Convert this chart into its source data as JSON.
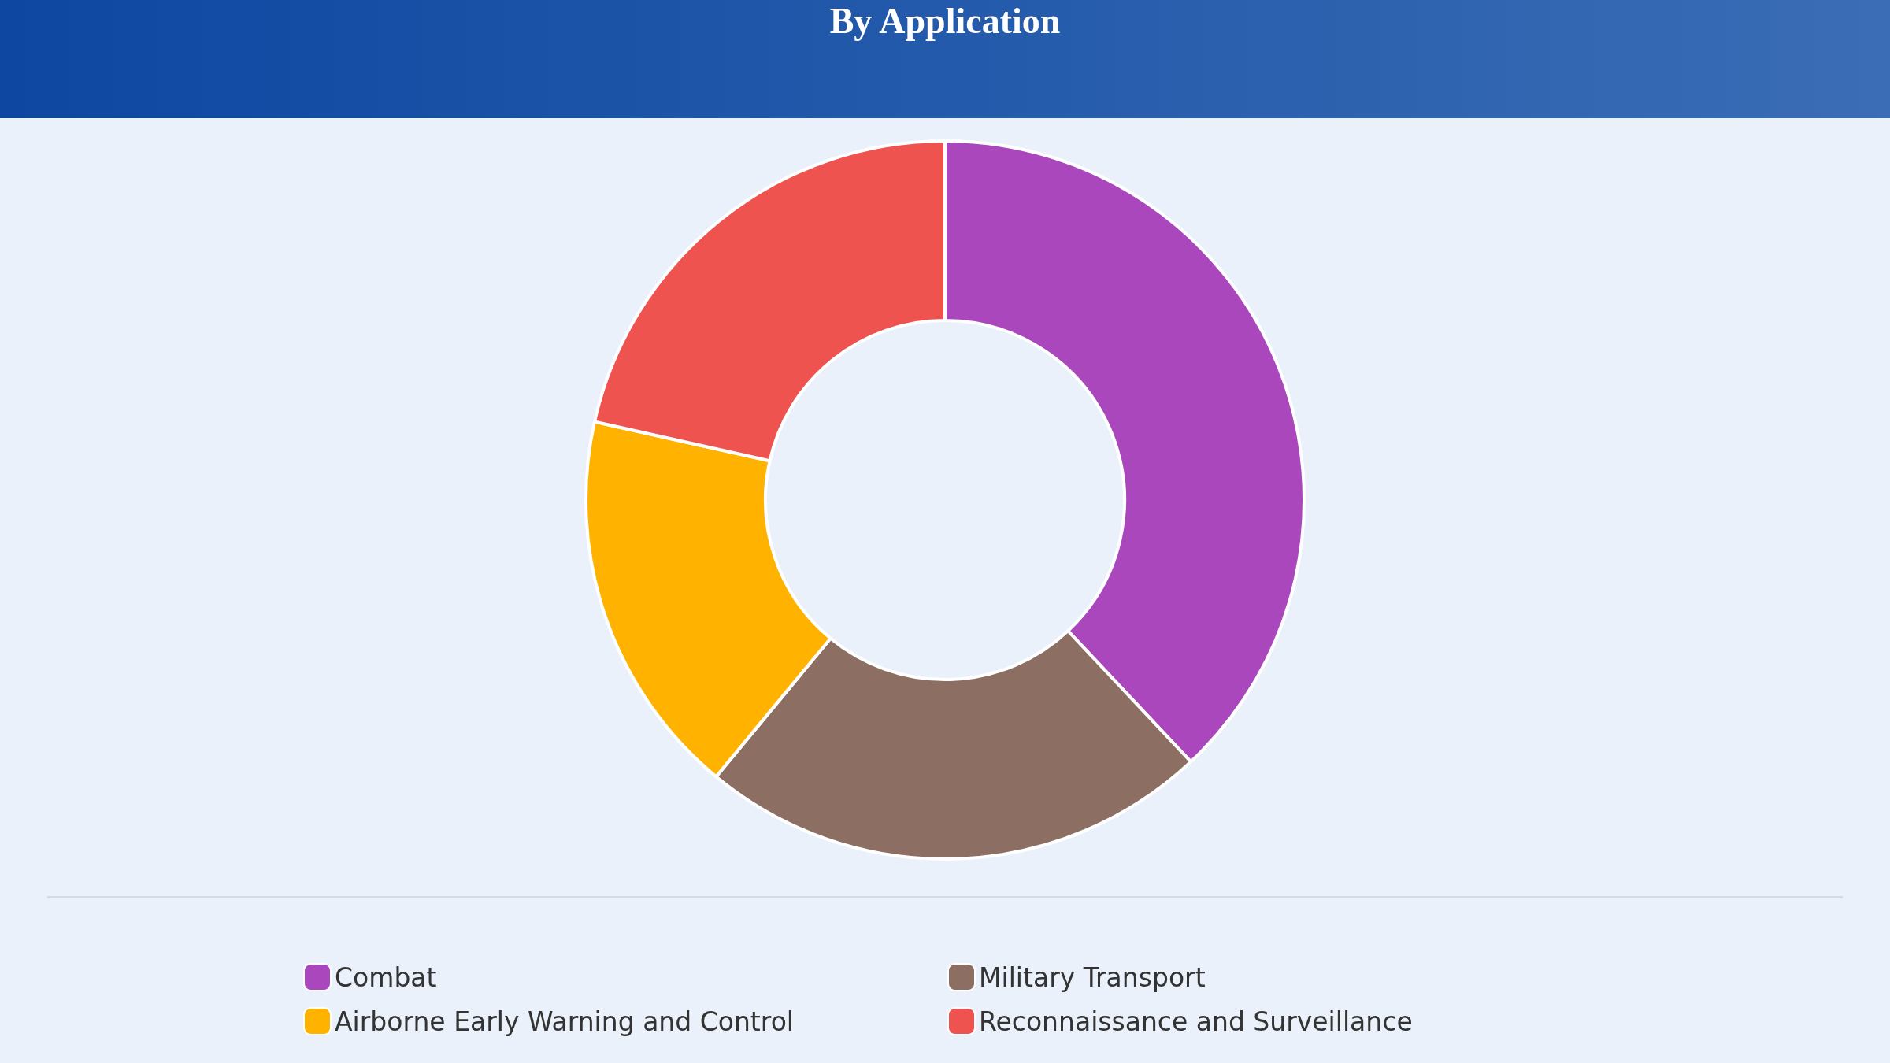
{
  "chart_data": {
    "type": "donut",
    "title": "By Application",
    "categories": [
      "Combat",
      "Military Transport",
      "Airborne Early Warning and Control",
      "Reconnaissance and Surveillance"
    ],
    "values": [
      38,
      23,
      17.5,
      21.5
    ],
    "colors": [
      "#ab47bc",
      "#8d6e63",
      "#ffb300",
      "#ef5350"
    ],
    "legend": "bottom"
  }
}
